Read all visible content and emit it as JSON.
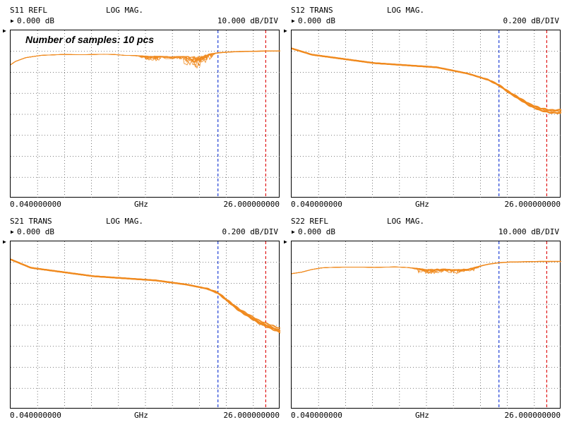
{
  "note": "Number of samples: 10 pcs",
  "colors": {
    "trace": "#f08a1e",
    "grid": "#555555",
    "marker_blue": "#1f3fd6",
    "marker_red": "#e01818"
  },
  "chart_data": [
    {
      "type": "line",
      "title": "S11 REFL",
      "format": "LOG MAG.",
      "ref": "0.000 dB",
      "scale": "10.000 dB/DIV",
      "x_start": "0.040000000",
      "x_unit": "GHz",
      "x_stop": "26.000000000",
      "xlim": [
        0.04,
        26.0
      ],
      "grid": true,
      "marker_blue_ghz": 20.0,
      "marker_red_ghz": 24.6,
      "series_count": 10,
      "x": [
        0.04,
        0.5,
        1.5,
        3,
        5,
        7,
        9,
        10,
        11,
        12,
        13,
        14,
        15,
        16,
        17,
        18,
        19,
        20,
        21,
        22,
        23,
        24,
        25,
        26
      ],
      "y": [
        -6.8,
        -5.2,
        -3.4,
        -2.3,
        -1.9,
        -2.0,
        -1.8,
        -1.9,
        -2.3,
        -2.4,
        -2.6,
        -2.7,
        -2.8,
        -2.8,
        -2.8,
        -2.6,
        -1.8,
        -1.1,
        -0.7,
        -0.5,
        -0.4,
        -0.3,
        -0.2,
        -0.2
      ],
      "dips_x": [
        13.5,
        15.5,
        17.5,
        18.5
      ],
      "dips_y": [
        -4.5,
        -4.0,
        -6.2,
        -6.3
      ]
    },
    {
      "type": "line",
      "title": "S12 TRANS",
      "format": "LOG MAG.",
      "ref": "0.000 dB",
      "scale": "0.200 dB/DIV",
      "x_start": "0.040000000",
      "x_unit": "GHz",
      "x_stop": "26.000000000",
      "xlim": [
        0.04,
        26.0
      ],
      "grid": true,
      "marker_blue_ghz": 20.0,
      "marker_red_ghz": 24.6,
      "series_count": 10,
      "x": [
        0.04,
        2,
        5,
        8,
        11,
        14,
        17,
        19,
        20,
        21,
        22,
        23,
        24,
        25,
        26
      ],
      "y": [
        0.02,
        -0.04,
        -0.08,
        -0.12,
        -0.14,
        -0.16,
        -0.22,
        -0.28,
        -0.33,
        -0.4,
        -0.46,
        -0.52,
        -0.56,
        -0.58,
        -0.58
      ]
    },
    {
      "type": "line",
      "title": "S21 TRANS",
      "format": "LOG MAG.",
      "ref": "0.000 dB",
      "scale": "0.200 dB/DIV",
      "x_start": "0.040000000",
      "x_unit": "GHz",
      "x_stop": "26.000000000",
      "xlim": [
        0.04,
        26.0
      ],
      "grid": true,
      "marker_blue_ghz": 20.0,
      "marker_red_ghz": 24.6,
      "series_count": 10,
      "x": [
        0.04,
        2,
        5,
        8,
        11,
        14,
        17,
        19,
        20,
        21,
        22,
        23,
        24,
        25,
        26
      ],
      "y": [
        0.02,
        -0.06,
        -0.1,
        -0.14,
        -0.16,
        -0.18,
        -0.22,
        -0.26,
        -0.3,
        -0.38,
        -0.46,
        -0.52,
        -0.58,
        -0.62,
        -0.66
      ]
    },
    {
      "type": "line",
      "title": "S22 REFL",
      "format": "LOG MAG.",
      "ref": "0.000 dB",
      "scale": "10.000 dB/DIV",
      "x_start": "0.040000000",
      "x_unit": "GHz",
      "x_stop": "26.000000000",
      "xlim": [
        0.04,
        26.0
      ],
      "grid": true,
      "marker_blue_ghz": 20.0,
      "marker_red_ghz": 24.6,
      "series_count": 10,
      "x": [
        0.04,
        1,
        2,
        3,
        4,
        5,
        6,
        7,
        8,
        9,
        10,
        11,
        12,
        13,
        14,
        15,
        16,
        17,
        18,
        19,
        20,
        21,
        22,
        23,
        24,
        25,
        26
      ],
      "y": [
        -5.8,
        -5.1,
        -3.8,
        -3.0,
        -2.8,
        -2.7,
        -2.7,
        -2.7,
        -2.8,
        -2.7,
        -2.6,
        -2.8,
        -3.2,
        -3.6,
        -3.4,
        -3.6,
        -3.8,
        -3.4,
        -2.4,
        -1.3,
        -0.6,
        -0.3,
        -0.2,
        -0.1,
        0.0,
        0.0,
        0.0
      ],
      "dips_x": [
        13.0,
        14.0,
        15.5,
        17.0
      ],
      "dips_y": [
        -5.4,
        -5.2,
        -5.0,
        -5.1
      ]
    }
  ]
}
